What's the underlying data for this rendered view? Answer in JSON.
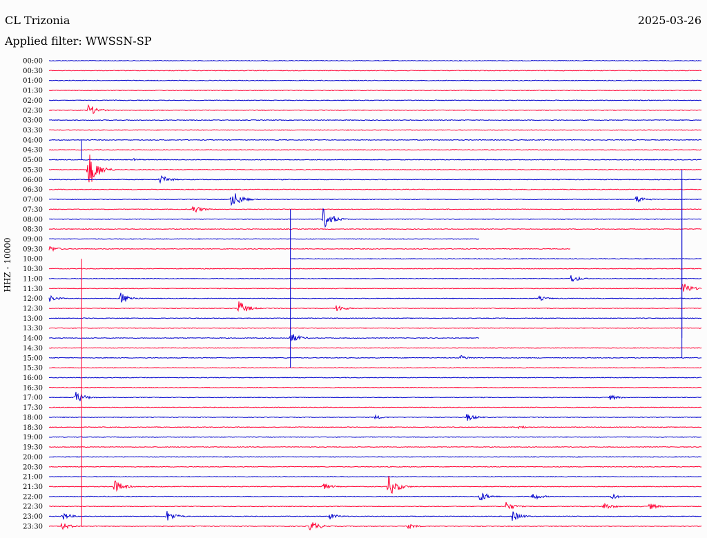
{
  "header": {
    "station": "CL Trizonia",
    "date": "2025-03-26",
    "filter_label": "Applied filter: WWSSN-SP"
  },
  "chart_data": {
    "type": "line",
    "subtype": "helicorder",
    "ylabel": "HHZ - 10000",
    "trace_colors": [
      "#0000cc",
      "#ff0033"
    ],
    "row_labels": [
      "00:00",
      "00:30",
      "01:00",
      "01:30",
      "02:00",
      "02:30",
      "03:00",
      "03:30",
      "04:00",
      "04:30",
      "05:00",
      "05:30",
      "06:00",
      "06:30",
      "07:00",
      "07:30",
      "08:00",
      "08:30",
      "09:00",
      "09:30",
      "10:00",
      "10:30",
      "11:00",
      "11:30",
      "12:00",
      "12:30",
      "13:00",
      "13:30",
      "14:00",
      "14:30",
      "15:00",
      "15:30",
      "16:00",
      "16:30",
      "17:00",
      "17:30",
      "18:00",
      "18:30",
      "19:00",
      "19:30",
      "20:00",
      "20:30",
      "21:00",
      "21:30",
      "22:00",
      "22:30",
      "23:00",
      "23:30"
    ],
    "events": [
      {
        "row": 5,
        "pos": 0.06,
        "amp": 9
      },
      {
        "row": 10,
        "pos": 0.13,
        "amp": 2
      },
      {
        "row": 11,
        "pos": 0.06,
        "amp": 28
      },
      {
        "row": 12,
        "pos": 0.17,
        "amp": 7
      },
      {
        "row": 14,
        "pos": 0.28,
        "amp": 14
      },
      {
        "row": 14,
        "pos": 0.9,
        "amp": 6
      },
      {
        "row": 15,
        "pos": 0.22,
        "amp": 7
      },
      {
        "row": 16,
        "pos": 0.42,
        "amp": 16
      },
      {
        "row": 19,
        "pos": 0.0,
        "amp": 5
      },
      {
        "row": 22,
        "pos": 0.8,
        "amp": 6
      },
      {
        "row": 23,
        "pos": 0.97,
        "amp": 10
      },
      {
        "row": 24,
        "pos": 0.0,
        "amp": 5
      },
      {
        "row": 24,
        "pos": 0.11,
        "amp": 9
      },
      {
        "row": 24,
        "pos": 0.75,
        "amp": 4
      },
      {
        "row": 25,
        "pos": 0.29,
        "amp": 12
      },
      {
        "row": 25,
        "pos": 0.44,
        "amp": 6
      },
      {
        "row": 28,
        "pos": 0.37,
        "amp": 8
      },
      {
        "row": 30,
        "pos": 0.63,
        "amp": 4
      },
      {
        "row": 34,
        "pos": 0.04,
        "amp": 10
      },
      {
        "row": 34,
        "pos": 0.86,
        "amp": 4
      },
      {
        "row": 36,
        "pos": 0.64,
        "amp": 6
      },
      {
        "row": 36,
        "pos": 0.5,
        "amp": 3
      },
      {
        "row": 37,
        "pos": 0.72,
        "amp": 3
      },
      {
        "row": 43,
        "pos": 0.1,
        "amp": 10
      },
      {
        "row": 43,
        "pos": 0.52,
        "amp": 16
      },
      {
        "row": 43,
        "pos": 0.42,
        "amp": 5
      },
      {
        "row": 44,
        "pos": 0.66,
        "amp": 8
      },
      {
        "row": 44,
        "pos": 0.74,
        "amp": 6
      },
      {
        "row": 44,
        "pos": 0.86,
        "amp": 5
      },
      {
        "row": 45,
        "pos": 0.7,
        "amp": 7
      },
      {
        "row": 45,
        "pos": 0.85,
        "amp": 6
      },
      {
        "row": 45,
        "pos": 0.92,
        "amp": 5
      },
      {
        "row": 46,
        "pos": 0.02,
        "amp": 6
      },
      {
        "row": 46,
        "pos": 0.18,
        "amp": 9
      },
      {
        "row": 46,
        "pos": 0.43,
        "amp": 5
      },
      {
        "row": 46,
        "pos": 0.71,
        "amp": 8
      },
      {
        "row": 47,
        "pos": 0.02,
        "amp": 6
      },
      {
        "row": 47,
        "pos": 0.4,
        "amp": 9
      },
      {
        "row": 47,
        "pos": 0.55,
        "amp": 4
      }
    ],
    "spikes": [
      {
        "row": 8,
        "pos": 0.05,
        "up": 0,
        "down": 2
      },
      {
        "row": 20,
        "pos": 0.37,
        "up": 5,
        "down": 11
      },
      {
        "row": 20,
        "pos": 0.97,
        "up": 8,
        "down": 8
      },
      {
        "row": 12,
        "pos": 0.97,
        "up": 1,
        "down": 18
      },
      {
        "row": 33,
        "pos": 0.05,
        "up": 13,
        "down": 14
      }
    ],
    "gaps": [
      {
        "row": 18,
        "from": 0.66,
        "to": 1.0
      },
      {
        "row": 19,
        "from": 0.8,
        "to": 1.0
      },
      {
        "row": 20,
        "from": 0.0,
        "to": 0.37
      },
      {
        "row": 28,
        "from": 0.66,
        "to": 1.0
      }
    ]
  }
}
